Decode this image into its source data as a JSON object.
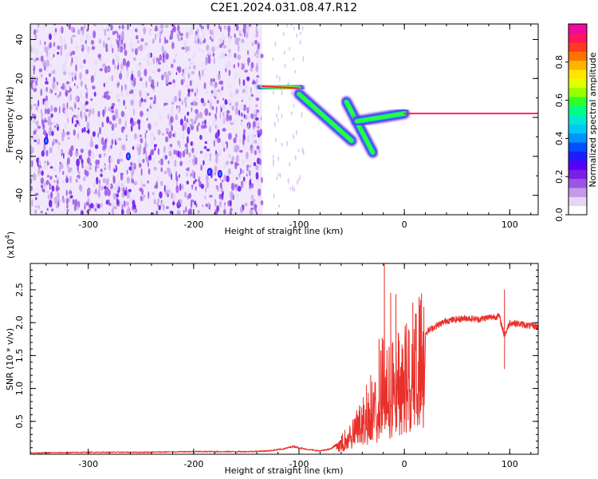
{
  "title": "C2E1.2024.031.08.47.R12",
  "chart_data": [
    {
      "type": "heatmap",
      "xlabel": "Height of straight line (km)",
      "ylabel": "Frequency (Hz)",
      "xlim": [
        -355,
        127
      ],
      "ylim": [
        -50,
        48
      ],
      "xticks": [
        -300,
        -200,
        -100,
        0,
        100
      ],
      "yticks": [
        -40,
        -20,
        0,
        20,
        40
      ],
      "colorbar": {
        "label": "Normalized spectral amplitude",
        "range": [
          0,
          1
        ],
        "ticks": [
          "0.0",
          "0.2",
          "0.4",
          "0.6",
          "0.8"
        ],
        "colormap": [
          "#ffffff",
          "#e6d6f6",
          "#c39be9",
          "#9c55e3",
          "#7a1fe6",
          "#5500f5",
          "#1d1cff",
          "#0050ff",
          "#0092ff",
          "#00c9f8",
          "#00ead0",
          "#00ff88",
          "#2dff2d",
          "#98ff00",
          "#e2ff00",
          "#ffe600",
          "#ffb400",
          "#ff7200",
          "#ff3a1e",
          "#ff1560",
          "#ee0aa0"
        ]
      },
      "noise_region": {
        "x": [
          -355,
          -135
        ],
        "y": [
          -50,
          48
        ],
        "amplitude": 0.2
      },
      "features": [
        {
          "desc": "horizontal band",
          "x": [
            -135,
            -100
          ],
          "y": [
            16,
            15
          ],
          "amplitude": 0.9
        },
        {
          "desc": "descending streak",
          "x": [
            -100,
            -50
          ],
          "y": [
            12,
            -12
          ],
          "amplitude": 0.7
        },
        {
          "desc": "descending streak",
          "x": [
            -55,
            -30
          ],
          "y": [
            8,
            -18
          ],
          "amplitude": 0.6
        },
        {
          "desc": "dispersion tail",
          "x": [
            -45,
            0
          ],
          "y": [
            -2,
            2
          ],
          "amplitude": 0.7
        },
        {
          "desc": "horizontal band",
          "x": [
            0,
            127
          ],
          "y": [
            2,
            2
          ],
          "amplitude": 0.95
        }
      ]
    },
    {
      "type": "line",
      "xlabel": "Height of straight line (km)",
      "ylabel": "SNR (10 * v/v)",
      "y_multiplier": "(x10",
      "y_multiplier_exp": "4",
      "y_multiplier_close": ")",
      "xlim": [
        -355,
        127
      ],
      "ylim": [
        0,
        2.9
      ],
      "xticks": [
        -300,
        -200,
        -100,
        0,
        100
      ],
      "yticks": [
        0.5,
        1.0,
        1.5,
        2.0,
        2.5
      ],
      "series": [
        {
          "color": "#e8302a",
          "x": [
            -355,
            -300,
            -250,
            -200,
            -150,
            -130,
            -115,
            -105,
            -95,
            -80,
            -70,
            -60,
            -50,
            -40,
            -30,
            -25,
            -20,
            -15,
            -10,
            -5,
            0,
            10,
            20,
            30,
            40,
            50,
            60,
            70,
            80,
            90,
            95,
            100,
            110,
            120,
            127
          ],
          "y": [
            0.02,
            0.03,
            0.03,
            0.04,
            0.04,
            0.05,
            0.08,
            0.12,
            0.08,
            0.05,
            0.08,
            0.2,
            0.35,
            0.6,
            0.8,
            0.9,
            1.3,
            1.15,
            1.2,
            1.45,
            1.35,
            1.6,
            1.85,
            1.95,
            2.03,
            2.05,
            2.07,
            2.05,
            2.08,
            2.1,
            1.8,
            2.0,
            1.98,
            1.95,
            1.94
          ],
          "spikes": [
            {
              "x": -19,
              "y": 2.9
            },
            {
              "x": -13,
              "y": 2.45
            },
            {
              "x": -8,
              "y": 2.43
            },
            {
              "x": 8,
              "y": 2.3
            },
            {
              "x": -32,
              "y": 1.2
            },
            {
              "x": -36,
              "y": 1.05
            },
            {
              "x": -24,
              "y": 1.75
            },
            {
              "x": 95,
              "y": 2.5
            },
            {
              "x": 95,
              "y": 1.3
            }
          ]
        }
      ]
    }
  ]
}
